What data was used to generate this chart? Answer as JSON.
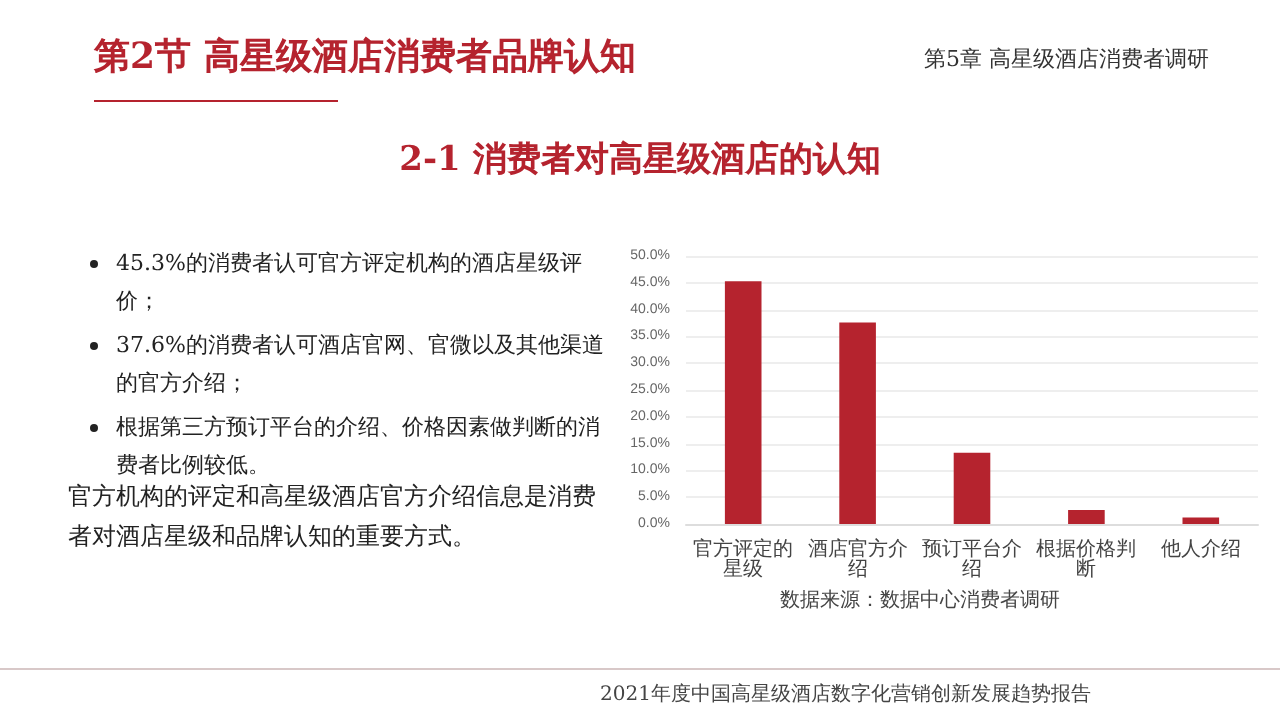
{
  "chart_data": {
    "type": "bar",
    "title": "2-1  消费者对高星级酒店的认知",
    "categories": [
      "官方评定的星级",
      "酒店官方介绍",
      "预订平台介绍",
      "根据价格判断",
      "他人介绍"
    ],
    "values": [
      45.3,
      37.6,
      13.3,
      2.6,
      1.2
    ],
    "color": "#b5232e",
    "ylim": [
      0,
      50
    ],
    "yticks": [
      {
        "value": 0,
        "label": "0.0%"
      },
      {
        "value": 5,
        "label": "5.0%"
      },
      {
        "value": 10,
        "label": "10.0%"
      },
      {
        "value": 15,
        "label": "15.0%"
      },
      {
        "value": 20,
        "label": "20.0%"
      },
      {
        "value": 25,
        "label": "25.0%"
      },
      {
        "value": 30,
        "label": "30.0%"
      },
      {
        "value": 35,
        "label": "35.0%"
      },
      {
        "value": 40,
        "label": "40.0%"
      },
      {
        "value": 45,
        "label": "45.0%"
      },
      {
        "value": 50,
        "label": "50.0%"
      }
    ],
    "grid": "y",
    "annotations": [
      "第2节 高星级酒店消费者品牌认知",
      "第5章 高星级酒店消费者调研",
      "45.3%的消费者认可官方评定机构的酒店星级评价；",
      "37.6%的消费者认可酒店官网、官微以及其他渠道的官方介绍；",
      "根据第三方预订平台的介绍、价格因素做判断的消费者比例较低。",
      "官方机构的评定和高星级酒店官方介绍信息是消费者对酒店星级和品牌认知的重要方式。",
      "数据来源：数据中心消费者调研",
      "2021年度中国高星级酒店数字化营销创新发展趋势报告"
    ]
  }
}
